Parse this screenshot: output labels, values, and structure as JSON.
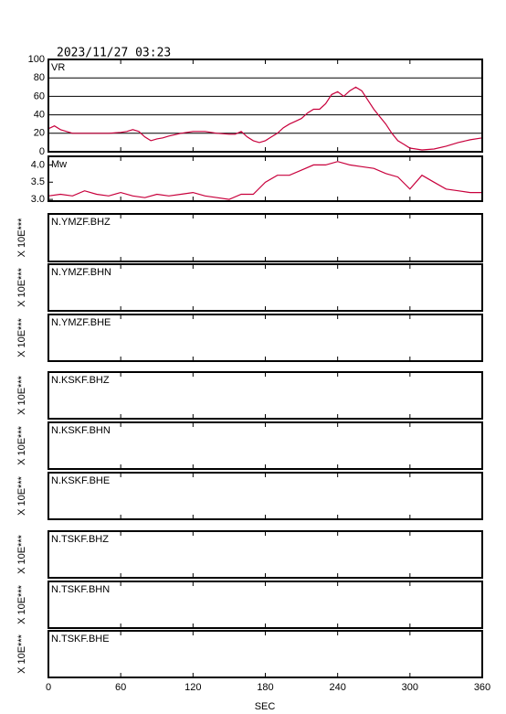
{
  "title": "2023/11/27 03:23",
  "x_axis": {
    "label": "SEC",
    "xlim": [
      0,
      360
    ],
    "xticks": [
      0,
      60,
      120,
      180,
      240,
      300,
      360
    ]
  },
  "chart_data": [
    {
      "type": "line",
      "title": "VR",
      "color": "#c8003c",
      "grid": true,
      "ylim": [
        0,
        100
      ],
      "yticks": [
        0,
        20,
        40,
        60,
        80,
        100
      ],
      "x": [
        0,
        5,
        10,
        15,
        20,
        30,
        40,
        50,
        60,
        65,
        70,
        75,
        80,
        85,
        90,
        95,
        100,
        110,
        120,
        130,
        140,
        150,
        155,
        160,
        165,
        170,
        175,
        180,
        185,
        190,
        195,
        200,
        205,
        210,
        215,
        220,
        225,
        230,
        235,
        240,
        245,
        250,
        255,
        260,
        265,
        270,
        275,
        280,
        285,
        290,
        295,
        300,
        305,
        310,
        320,
        330,
        340,
        350,
        360
      ],
      "values": [
        25,
        28,
        24,
        22,
        20,
        20,
        20,
        20,
        21,
        22,
        24,
        22,
        16,
        12,
        14,
        15,
        17,
        20,
        22,
        22,
        20,
        19,
        19,
        22,
        16,
        12,
        10,
        12,
        16,
        20,
        26,
        30,
        33,
        36,
        42,
        46,
        46,
        52,
        62,
        65,
        60,
        66,
        70,
        66,
        56,
        46,
        38,
        30,
        20,
        12,
        8,
        4,
        3,
        2,
        3,
        6,
        10,
        13,
        15
      ]
    },
    {
      "type": "line",
      "title": "Mw",
      "color": "#c8003c",
      "grid": false,
      "ylim": [
        2.95,
        4.25
      ],
      "yticks": [
        {
          "value": 3,
          "label": "3.0"
        },
        3.5,
        {
          "value": 4,
          "label": "4.0"
        }
      ],
      "x": [
        0,
        10,
        20,
        30,
        40,
        50,
        60,
        70,
        80,
        90,
        100,
        110,
        120,
        130,
        140,
        150,
        160,
        170,
        180,
        190,
        200,
        210,
        220,
        230,
        240,
        250,
        260,
        270,
        280,
        290,
        300,
        310,
        320,
        330,
        340,
        350,
        360
      ],
      "values": [
        3.1,
        3.15,
        3.1,
        3.25,
        3.15,
        3.1,
        3.2,
        3.1,
        3.05,
        3.15,
        3.1,
        3.15,
        3.2,
        3.1,
        3.05,
        3.0,
        3.15,
        3.15,
        3.5,
        3.7,
        3.7,
        3.85,
        4.0,
        4.0,
        4.1,
        4.0,
        3.95,
        3.9,
        3.75,
        3.65,
        3.3,
        3.7,
        3.5,
        3.3,
        3.25,
        3.2,
        3.2
      ]
    },
    {
      "type": "waveform",
      "title": "N.YMZF.BHZ",
      "ylabel": "X 10E***"
    },
    {
      "type": "waveform",
      "title": "N.YMZF.BHN",
      "ylabel": "X 10E***"
    },
    {
      "type": "waveform",
      "title": "N.YMZF.BHE",
      "ylabel": "X 10E***"
    },
    {
      "type": "waveform",
      "title": "N.KSKF.BHZ",
      "ylabel": "X 10E***"
    },
    {
      "type": "waveform",
      "title": "N.KSKF.BHN",
      "ylabel": "X 10E***"
    },
    {
      "type": "waveform",
      "title": "N.KSKF.BHE",
      "ylabel": "X 10E***"
    },
    {
      "type": "waveform",
      "title": "N.TSKF.BHZ",
      "ylabel": "X 10E***"
    },
    {
      "type": "waveform",
      "title": "N.TSKF.BHN",
      "ylabel": "X 10E***"
    },
    {
      "type": "waveform",
      "title": "N.TSKF.BHE",
      "ylabel": "X 10E***"
    }
  ]
}
